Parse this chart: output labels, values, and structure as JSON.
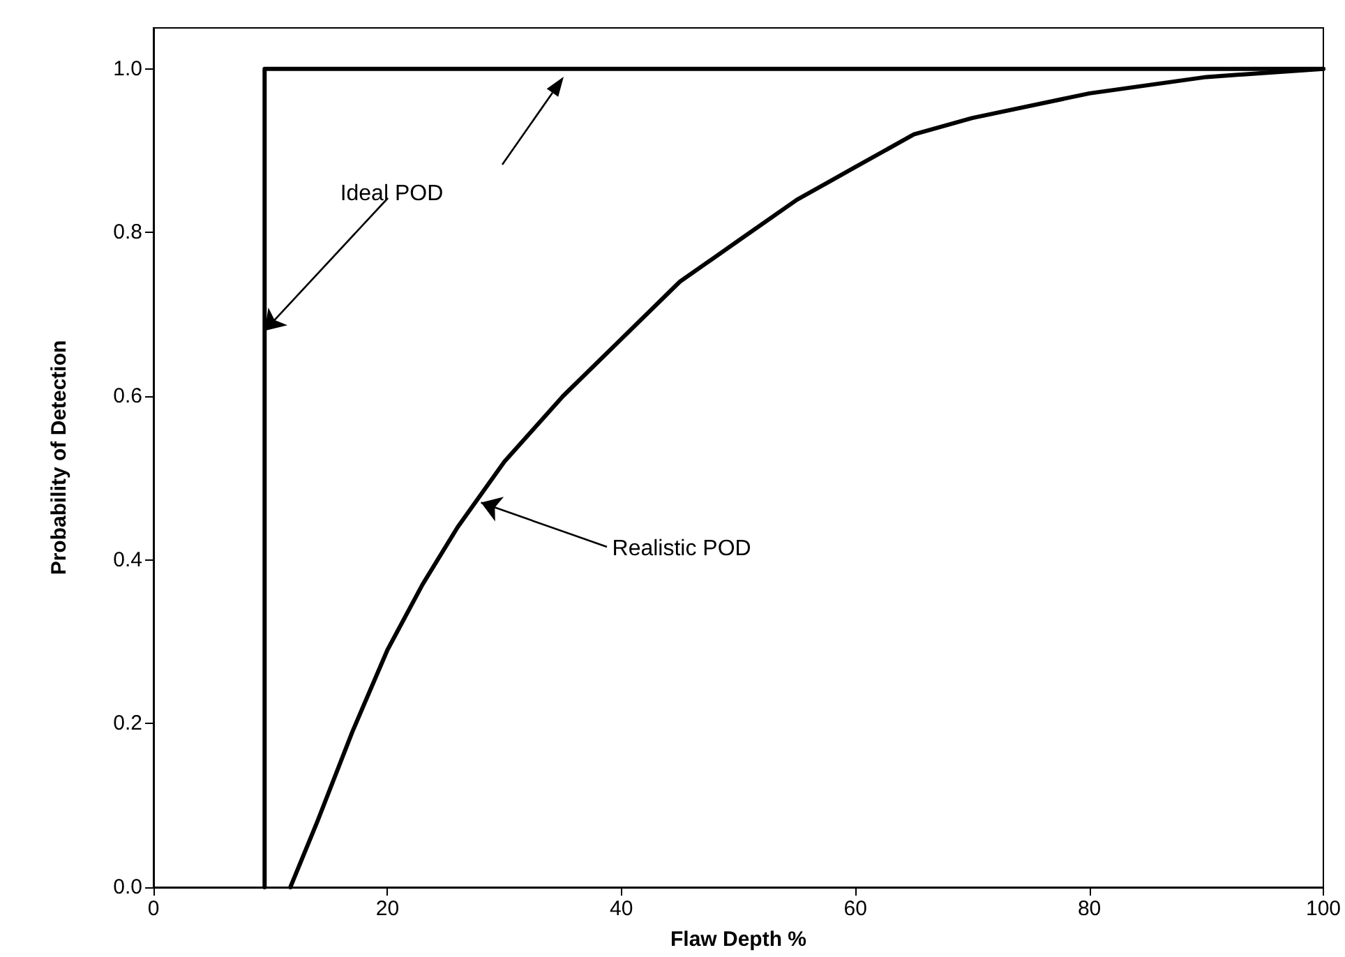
{
  "chart_data": {
    "type": "line",
    "xlabel": "Flaw Depth %",
    "ylabel": "Probability of Detection",
    "xlim": [
      0,
      100
    ],
    "xticks": [
      0,
      20,
      40,
      60,
      80,
      100
    ],
    "ylim": [
      0,
      1.05
    ],
    "yticks": [
      {
        "value": 0,
        "label": "0.0"
      },
      {
        "value": 0.2,
        "label": "0.2"
      },
      {
        "value": 0.4,
        "label": "0.4"
      },
      {
        "value": 0.6,
        "label": "0.6"
      },
      {
        "value": 0.8,
        "label": "0.8"
      },
      {
        "value": 1,
        "label": "1.0"
      }
    ],
    "grid": false,
    "marker": "none",
    "line_style": "solid",
    "series": [
      {
        "color": "#000000",
        "x": [
          9.5,
          9.5,
          100
        ],
        "values": [
          0,
          1,
          1
        ]
      },
      {
        "color": "#000000",
        "x": [
          11.7,
          14,
          17,
          20,
          23,
          26,
          30,
          35,
          40,
          45,
          50,
          55,
          60,
          65,
          70,
          80,
          90,
          100
        ],
        "values": [
          0,
          0.08,
          0.19,
          0.29,
          0.37,
          0.44,
          0.52,
          0.6,
          0.67,
          0.74,
          0.79,
          0.84,
          0.88,
          0.92,
          0.94,
          0.97,
          0.99,
          1
        ]
      }
    ],
    "annotations": [
      {
        "text": "Ideal POD",
        "x": 9.5,
        "y": 0.68
      },
      {
        "text": "Realistic POD",
        "x": 28,
        "y": 0.47
      }
    ]
  }
}
